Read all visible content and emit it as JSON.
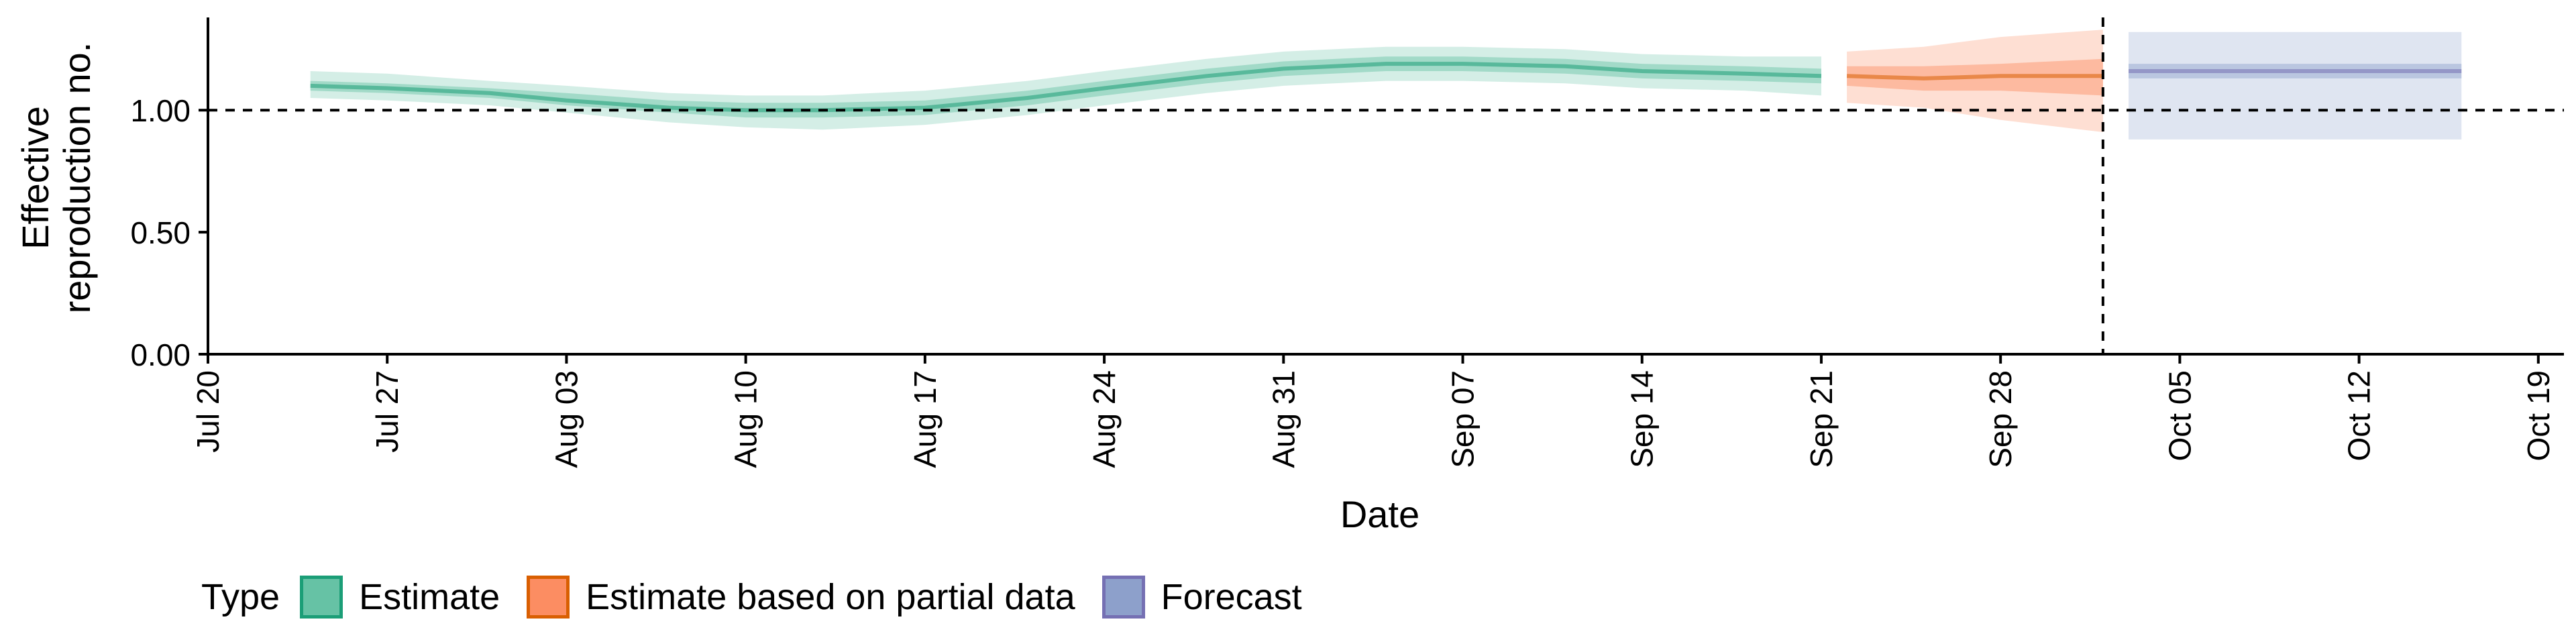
{
  "chart_data": {
    "type": "area",
    "xlabel": "Date",
    "ylabel": [
      "Effective",
      "reproduction no."
    ],
    "ylim": [
      0,
      1.38
    ],
    "y_ticks": [
      {
        "value": 0,
        "label": "0.00"
      },
      {
        "value": 0.5,
        "label": "0.50"
      },
      {
        "value": 1.0,
        "label": "1.00"
      }
    ],
    "x_start": "2020-07-20",
    "x_end": "2020-10-20",
    "x_ticks": [
      {
        "date": "2020-07-20",
        "label": "Jul 20"
      },
      {
        "date": "2020-07-27",
        "label": "Jul 27"
      },
      {
        "date": "2020-08-03",
        "label": "Aug 03"
      },
      {
        "date": "2020-08-10",
        "label": "Aug 10"
      },
      {
        "date": "2020-08-17",
        "label": "Aug 17"
      },
      {
        "date": "2020-08-24",
        "label": "Aug 24"
      },
      {
        "date": "2020-08-31",
        "label": "Aug 31"
      },
      {
        "date": "2020-09-07",
        "label": "Sep 07"
      },
      {
        "date": "2020-09-14",
        "label": "Sep 14"
      },
      {
        "date": "2020-09-21",
        "label": "Sep 21"
      },
      {
        "date": "2020-09-28",
        "label": "Sep 28"
      },
      {
        "date": "2020-10-05",
        "label": "Oct 05"
      },
      {
        "date": "2020-10-12",
        "label": "Oct 12"
      },
      {
        "date": "2020-10-19",
        "label": "Oct 19"
      }
    ],
    "reference_line_y": 1.0,
    "reference_date": "2020-10-02",
    "legend_title": "Type",
    "legend_position": "bottom",
    "series": [
      {
        "name": "Estimate",
        "color": "#1b9e77",
        "fill": "#66c2a5",
        "points": [
          {
            "date": "2020-07-24",
            "median": 1.1,
            "lower_50": 1.08,
            "upper_50": 1.12,
            "lower_90": 1.05,
            "upper_90": 1.16
          },
          {
            "date": "2020-07-27",
            "median": 1.09,
            "lower_50": 1.07,
            "upper_50": 1.11,
            "lower_90": 1.04,
            "upper_90": 1.15
          },
          {
            "date": "2020-07-31",
            "median": 1.07,
            "lower_50": 1.05,
            "upper_50": 1.09,
            "lower_90": 1.02,
            "upper_90": 1.12
          },
          {
            "date": "2020-08-03",
            "median": 1.04,
            "lower_50": 1.02,
            "upper_50": 1.07,
            "lower_90": 0.99,
            "upper_90": 1.1
          },
          {
            "date": "2020-08-07",
            "median": 1.01,
            "lower_50": 0.99,
            "upper_50": 1.04,
            "lower_90": 0.95,
            "upper_90": 1.07
          },
          {
            "date": "2020-08-10",
            "median": 1.0,
            "lower_50": 0.97,
            "upper_50": 1.03,
            "lower_90": 0.93,
            "upper_90": 1.06
          },
          {
            "date": "2020-08-13",
            "median": 1.0,
            "lower_50": 0.97,
            "upper_50": 1.03,
            "lower_90": 0.92,
            "upper_90": 1.06
          },
          {
            "date": "2020-08-17",
            "median": 1.01,
            "lower_50": 0.98,
            "upper_50": 1.04,
            "lower_90": 0.94,
            "upper_90": 1.08
          },
          {
            "date": "2020-08-21",
            "median": 1.05,
            "lower_50": 1.02,
            "upper_50": 1.08,
            "lower_90": 0.98,
            "upper_90": 1.12
          },
          {
            "date": "2020-08-24",
            "median": 1.09,
            "lower_50": 1.06,
            "upper_50": 1.12,
            "lower_90": 1.02,
            "upper_90": 1.16
          },
          {
            "date": "2020-08-28",
            "median": 1.14,
            "lower_50": 1.11,
            "upper_50": 1.17,
            "lower_90": 1.07,
            "upper_90": 1.21
          },
          {
            "date": "2020-08-31",
            "median": 1.17,
            "lower_50": 1.14,
            "upper_50": 1.2,
            "lower_90": 1.1,
            "upper_90": 1.24
          },
          {
            "date": "2020-09-04",
            "median": 1.19,
            "lower_50": 1.16,
            "upper_50": 1.22,
            "lower_90": 1.12,
            "upper_90": 1.26
          },
          {
            "date": "2020-09-07",
            "median": 1.19,
            "lower_50": 1.16,
            "upper_50": 1.22,
            "lower_90": 1.12,
            "upper_90": 1.26
          },
          {
            "date": "2020-09-11",
            "median": 1.18,
            "lower_50": 1.15,
            "upper_50": 1.21,
            "lower_90": 1.11,
            "upper_90": 1.25
          },
          {
            "date": "2020-09-14",
            "median": 1.16,
            "lower_50": 1.13,
            "upper_50": 1.19,
            "lower_90": 1.09,
            "upper_90": 1.23
          },
          {
            "date": "2020-09-18",
            "median": 1.15,
            "lower_50": 1.12,
            "upper_50": 1.18,
            "lower_90": 1.08,
            "upper_90": 1.22
          },
          {
            "date": "2020-09-21",
            "median": 1.14,
            "lower_50": 1.11,
            "upper_50": 1.17,
            "lower_90": 1.06,
            "upper_90": 1.22
          }
        ]
      },
      {
        "name": "Estimate based on partial data",
        "color": "#d95f02",
        "fill": "#fc8d62",
        "points": [
          {
            "date": "2020-09-22",
            "median": 1.14,
            "lower_50": 1.1,
            "upper_50": 1.18,
            "lower_90": 1.03,
            "upper_90": 1.24
          },
          {
            "date": "2020-09-25",
            "median": 1.13,
            "lower_50": 1.08,
            "upper_50": 1.18,
            "lower_90": 1.01,
            "upper_90": 1.26
          },
          {
            "date": "2020-09-28",
            "median": 1.14,
            "lower_50": 1.08,
            "upper_50": 1.19,
            "lower_90": 0.96,
            "upper_90": 1.3
          },
          {
            "date": "2020-10-02",
            "median": 1.14,
            "lower_50": 1.06,
            "upper_50": 1.21,
            "lower_90": 0.91,
            "upper_90": 1.33
          }
        ]
      },
      {
        "name": "Forecast",
        "color": "#7570b3",
        "fill": "#8da0cb",
        "points": [
          {
            "date": "2020-10-03",
            "median": 1.16,
            "lower_50": 1.13,
            "upper_50": 1.19,
            "lower_90": 0.88,
            "upper_90": 1.32
          },
          {
            "date": "2020-10-16",
            "median": 1.16,
            "lower_50": 1.13,
            "upper_50": 1.19,
            "lower_90": 0.88,
            "upper_90": 1.32
          }
        ]
      }
    ]
  }
}
